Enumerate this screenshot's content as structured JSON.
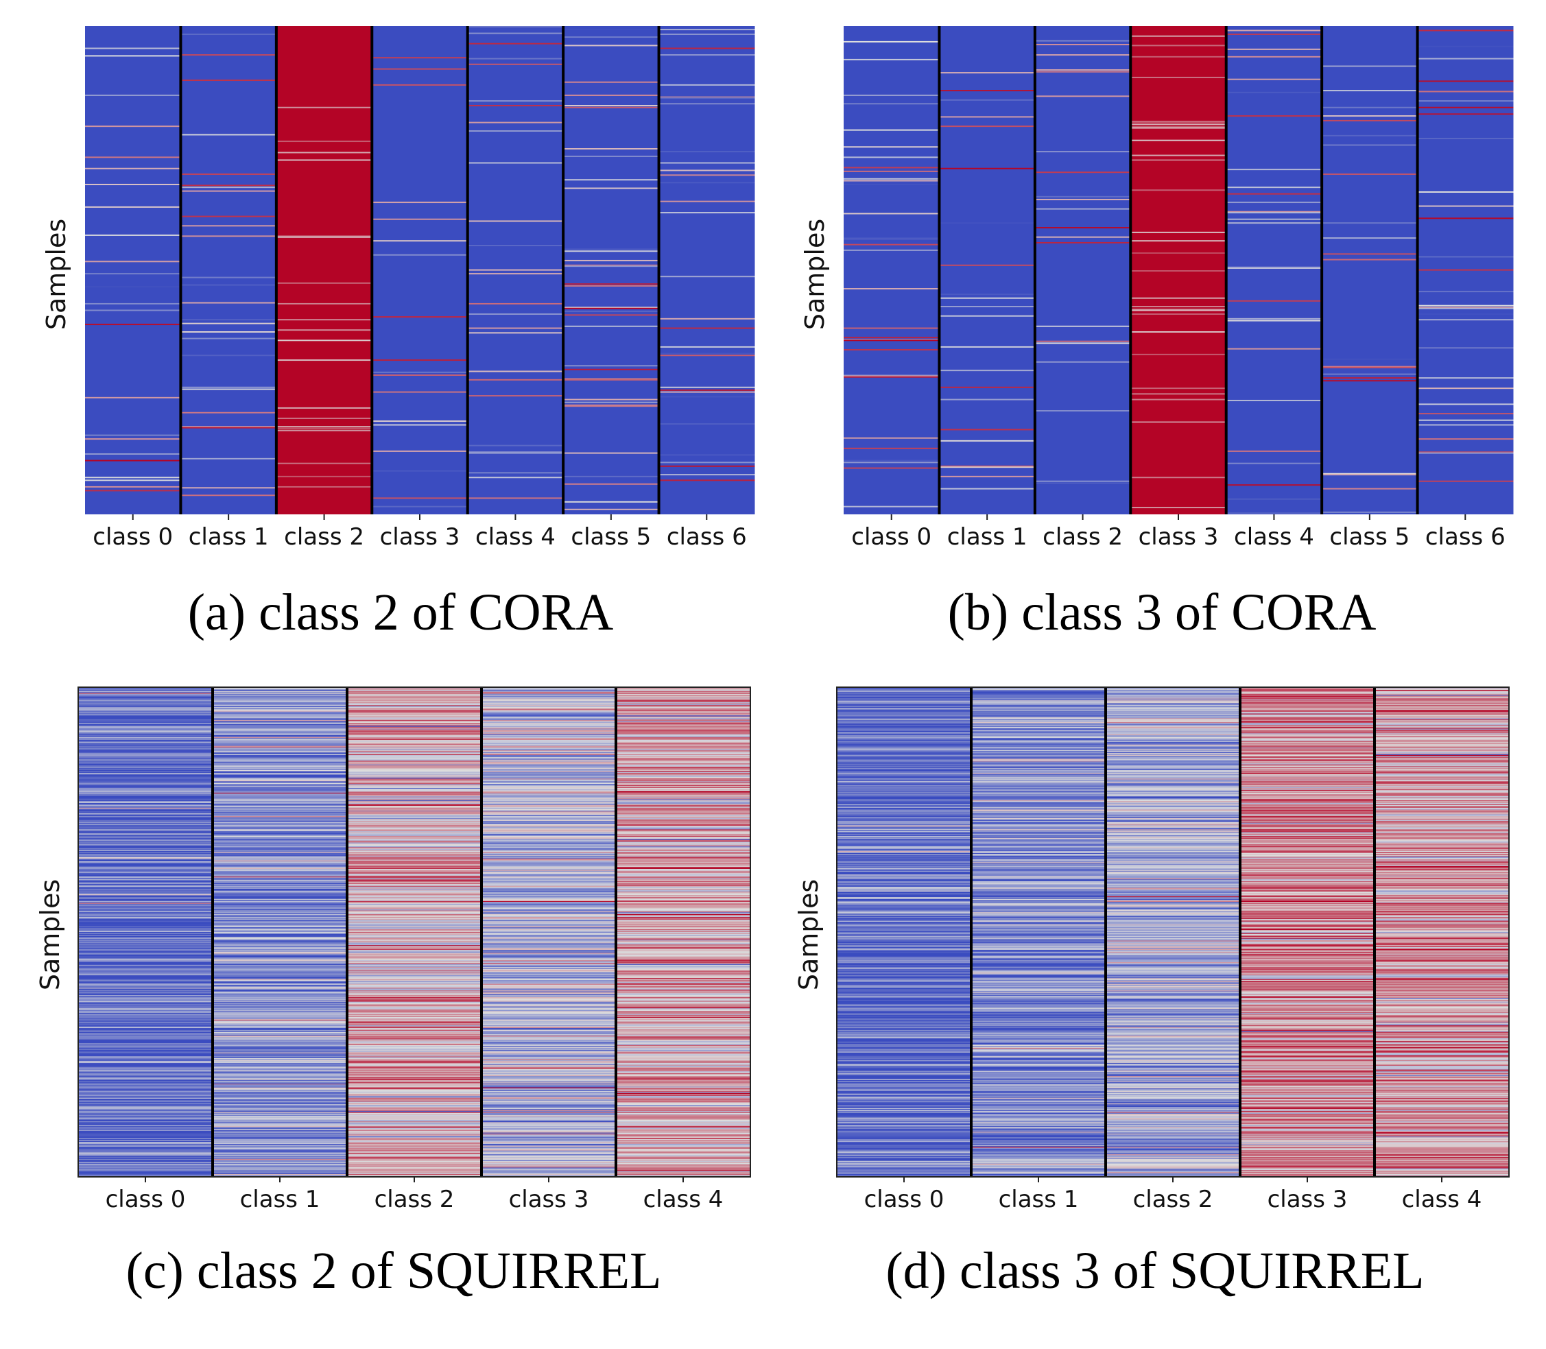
{
  "figure": {
    "colormap": "coolwarm",
    "colors": {
      "cool_end": "#3b4cc0",
      "neutral": "#dddddd",
      "warm_end": "#b40426",
      "divider": "#000000"
    }
  },
  "chart_data": [
    {
      "type": "heatmap",
      "title": "(a) class 2 of CORA",
      "ylabel": "Samples",
      "categories": [
        "class 0",
        "class 1",
        "class 2",
        "class 3",
        "class 4",
        "class 5",
        "class 6"
      ],
      "value_range": [
        0,
        1
      ],
      "dominant_class_index": 2,
      "column_base_values": [
        0.0,
        0.0,
        1.0,
        0.0,
        0.0,
        0.0,
        0.0
      ],
      "samples": 520,
      "row_variation": "sparse"
    },
    {
      "type": "heatmap",
      "title": "(b) class 3 of CORA",
      "ylabel": "Samples",
      "categories": [
        "class 0",
        "class 1",
        "class 2",
        "class 3",
        "class 4",
        "class 5",
        "class 6"
      ],
      "value_range": [
        0,
        1
      ],
      "dominant_class_index": 3,
      "column_base_values": [
        0.0,
        0.0,
        0.0,
        1.0,
        0.0,
        0.0,
        0.0
      ],
      "samples": 520,
      "row_variation": "sparse"
    },
    {
      "type": "heatmap",
      "title": "(c) class 2 of SQUIRREL",
      "ylabel": "Samples",
      "categories": [
        "class 0",
        "class 1",
        "class 2",
        "class 3",
        "class 4"
      ],
      "value_range": [
        0,
        1
      ],
      "dominant_class_index": 2,
      "column_base_values": [
        0.12,
        0.25,
        0.58,
        0.38,
        0.62
      ],
      "samples": 520,
      "row_variation": "dense"
    },
    {
      "type": "heatmap",
      "title": "(d) class 3 of SQUIRREL",
      "ylabel": "Samples",
      "categories": [
        "class 0",
        "class 1",
        "class 2",
        "class 3",
        "class 4"
      ],
      "value_range": [
        0,
        1
      ],
      "dominant_class_index": 3,
      "column_base_values": [
        0.1,
        0.22,
        0.33,
        0.68,
        0.64
      ],
      "samples": 520,
      "row_variation": "dense"
    }
  ]
}
